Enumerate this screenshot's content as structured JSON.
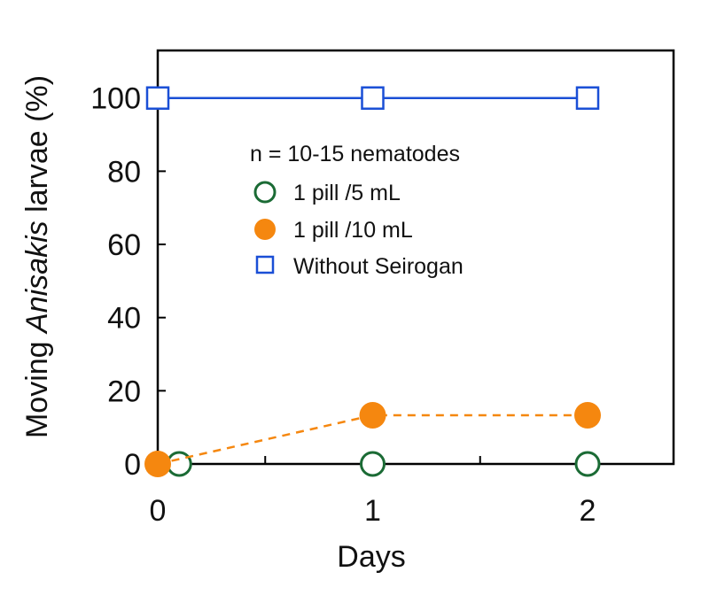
{
  "chart_data": {
    "type": "line",
    "xlabel": "Days",
    "ylabel_prefix": "Moving ",
    "ylabel_italic": "Anisakis",
    "ylabel_suffix": " larvae (%)",
    "xlim": [
      0,
      2.4
    ],
    "ylim": [
      0,
      113
    ],
    "x_ticks": [
      0,
      1,
      2
    ],
    "x_minor_ticks": [
      0.5,
      1.5
    ],
    "y_ticks": [
      0,
      20,
      40,
      60,
      80,
      100
    ],
    "grid": false,
    "legend_position": "center",
    "legend_title": "n = 10-15 nematodes",
    "series": [
      {
        "name": "1 pill /5 mL",
        "marker": "circle-open",
        "color": "#1b6b35",
        "line": "none",
        "x": [
          0.1,
          1,
          2
        ],
        "y": [
          0,
          0,
          0
        ]
      },
      {
        "name": "1 pill /10 mL",
        "marker": "circle-filled",
        "color": "#f5870f",
        "line": "dashed",
        "x": [
          0,
          1,
          2
        ],
        "y": [
          0,
          13.3,
          13.3
        ]
      },
      {
        "name": "Without Seirogan",
        "marker": "square-open",
        "color": "#1a4fd6",
        "line": "solid",
        "x": [
          0,
          1,
          2
        ],
        "y": [
          100,
          100,
          100
        ]
      }
    ]
  }
}
